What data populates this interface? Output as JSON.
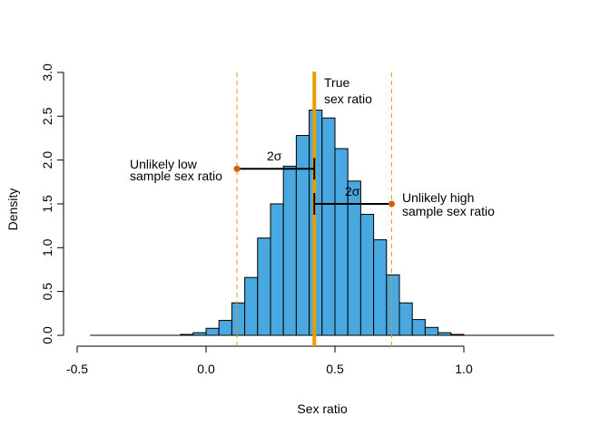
{
  "chart_data": {
    "type": "bar",
    "title": "",
    "xlabel": "Sex ratio",
    "ylabel": "Density",
    "xlim": [
      -0.5,
      1.35
    ],
    "ylim": [
      0,
      3.0
    ],
    "xticks": [
      -0.5,
      0.0,
      0.5,
      1.0
    ],
    "xtick_labels": [
      "-0.5",
      "0.0",
      "0.5",
      "1.0"
    ],
    "yticks": [
      0,
      0.5,
      1.0,
      1.5,
      2.0,
      2.5,
      3.0
    ],
    "ytick_labels": [
      "0.0",
      "0.5",
      "1.0",
      "1.5",
      "2.0",
      "2.5",
      "3.0"
    ],
    "grid": false,
    "bin_width": 0.05,
    "bins": [
      {
        "x0": -0.1,
        "x1": -0.05,
        "density": 0.01
      },
      {
        "x0": -0.05,
        "x1": 0.0,
        "density": 0.03
      },
      {
        "x0": 0.0,
        "x1": 0.05,
        "density": 0.08
      },
      {
        "x0": 0.05,
        "x1": 0.1,
        "density": 0.17
      },
      {
        "x0": 0.1,
        "x1": 0.15,
        "density": 0.37
      },
      {
        "x0": 0.15,
        "x1": 0.2,
        "density": 0.66
      },
      {
        "x0": 0.2,
        "x1": 0.25,
        "density": 1.11
      },
      {
        "x0": 0.25,
        "x1": 0.3,
        "density": 1.5
      },
      {
        "x0": 0.3,
        "x1": 0.35,
        "density": 1.93
      },
      {
        "x0": 0.35,
        "x1": 0.4,
        "density": 2.28
      },
      {
        "x0": 0.4,
        "x1": 0.45,
        "density": 2.57
      },
      {
        "x0": 0.45,
        "x1": 0.5,
        "density": 2.48
      },
      {
        "x0": 0.5,
        "x1": 0.55,
        "density": 2.13
      },
      {
        "x0": 0.55,
        "x1": 0.6,
        "density": 1.76
      },
      {
        "x0": 0.6,
        "x1": 0.65,
        "density": 1.38
      },
      {
        "x0": 0.65,
        "x1": 0.7,
        "density": 1.09
      },
      {
        "x0": 0.7,
        "x1": 0.75,
        "density": 0.69
      },
      {
        "x0": 0.75,
        "x1": 0.8,
        "density": 0.37
      },
      {
        "x0": 0.8,
        "x1": 0.85,
        "density": 0.18
      },
      {
        "x0": 0.85,
        "x1": 0.9,
        "density": 0.09
      },
      {
        "x0": 0.9,
        "x1": 0.95,
        "density": 0.03
      },
      {
        "x0": 0.95,
        "x1": 1.0,
        "density": 0.01
      }
    ],
    "baseline": {
      "from": -0.45,
      "to": 1.35,
      "density": 0
    },
    "true_ratio": {
      "x": 0.42,
      "color": "#e69f00",
      "label_line1": "True",
      "label_line2": "sex ratio"
    },
    "sample_lines": {
      "x_low": 0.12,
      "x_high": 0.72,
      "color": "#e69f00"
    },
    "low_interval": {
      "x_start": 0.12,
      "x_end": 0.42,
      "y": 1.9,
      "label": "2σ",
      "point_color": "#d55e00"
    },
    "high_interval": {
      "x_start": 0.42,
      "x_end": 0.72,
      "y": 1.5,
      "label": "2σ",
      "point_color": "#d55e00"
    },
    "annotations": {
      "low_line1": "Unlikely low",
      "low_line2": "sample sex ratio",
      "high_line1": "Unlikely high",
      "high_line2": "sample sex ratio"
    }
  }
}
